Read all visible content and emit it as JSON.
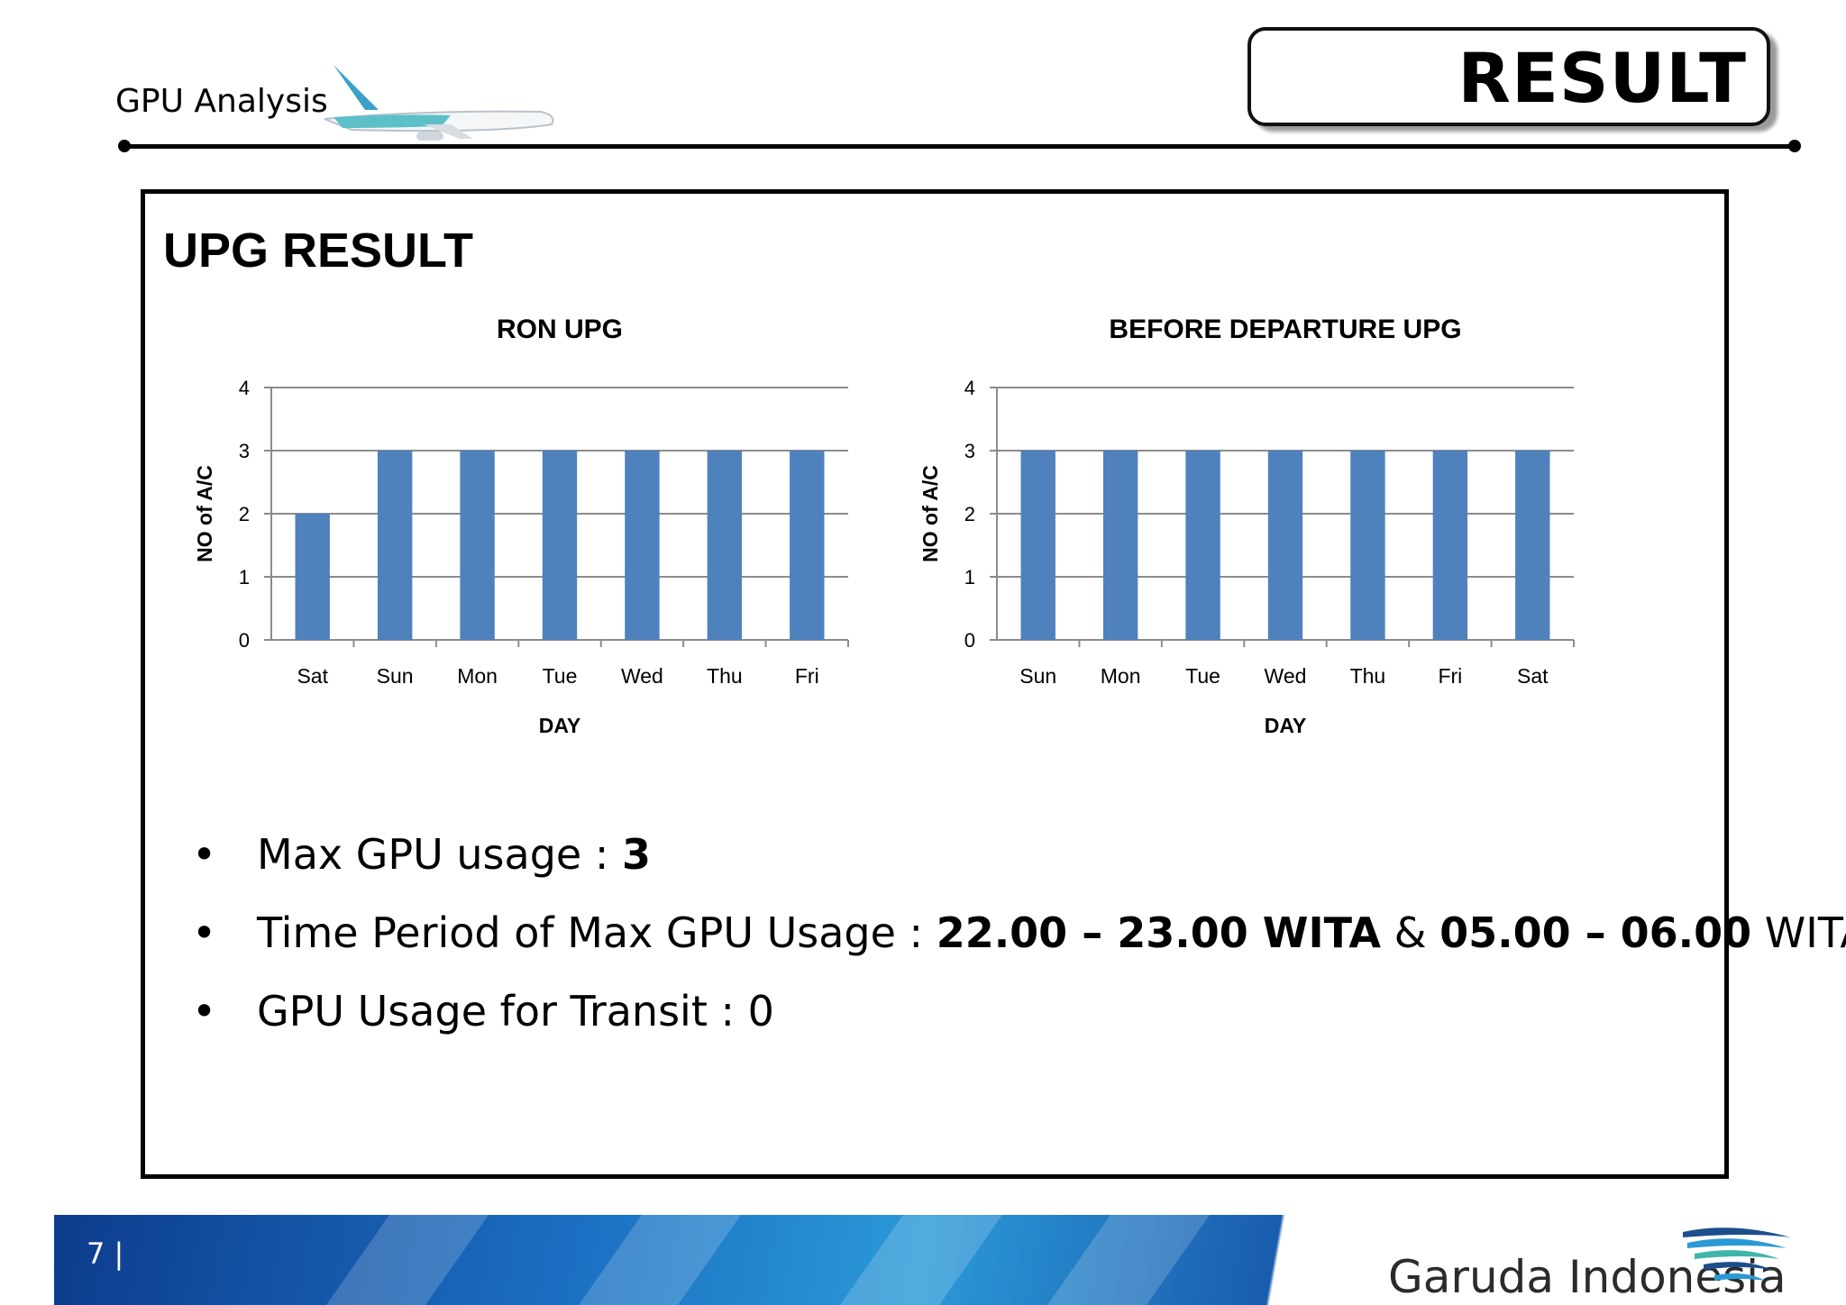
{
  "header": {
    "brand": "GPU Analysis",
    "page_title": "RESULT"
  },
  "panel": {
    "title": "UPG RESULT",
    "bullets": [
      {
        "parts": [
          {
            "text": "Max GPU usage : ",
            "bold": false
          },
          {
            "text": "3",
            "bold": true
          }
        ]
      },
      {
        "parts": [
          {
            "text": "Time Period of Max GPU Usage : ",
            "bold": false
          },
          {
            "text": "22.00 – 23.00 WITA",
            "bold": true
          },
          {
            "text": " & ",
            "bold": false
          },
          {
            "text": "05.00 – 06.00",
            "bold": true
          },
          {
            "text": " WITA",
            "bold": false
          }
        ]
      },
      {
        "parts": [
          {
            "text": "GPU Usage for Transit : 0",
            "bold": false
          }
        ]
      }
    ]
  },
  "footer": {
    "page_number": "7 |",
    "logo_text": "Garuda Indonesia"
  },
  "colors": {
    "bar": "#4f81bd",
    "grid": "#8c8c8c",
    "footer_blue": "#1b6fc2"
  },
  "chart_data": [
    {
      "type": "bar",
      "title": "RON UPG",
      "xlabel": "DAY",
      "ylabel": "NO of A/C",
      "categories": [
        "Sat",
        "Sun",
        "Mon",
        "Tue",
        "Wed",
        "Thu",
        "Fri"
      ],
      "values": [
        2,
        3,
        3,
        3,
        3,
        3,
        3
      ],
      "ylim": [
        0,
        4
      ],
      "yticks": [
        0,
        1,
        2,
        3,
        4
      ],
      "grid": true
    },
    {
      "type": "bar",
      "title": "BEFORE DEPARTURE UPG",
      "xlabel": "DAY",
      "ylabel": "NO of A/C",
      "categories": [
        "Sun",
        "Mon",
        "Tue",
        "Wed",
        "Thu",
        "Fri",
        "Sat"
      ],
      "values": [
        3,
        3,
        3,
        3,
        3,
        3,
        3
      ],
      "ylim": [
        0,
        4
      ],
      "yticks": [
        0,
        1,
        2,
        3,
        4
      ],
      "grid": true
    }
  ]
}
